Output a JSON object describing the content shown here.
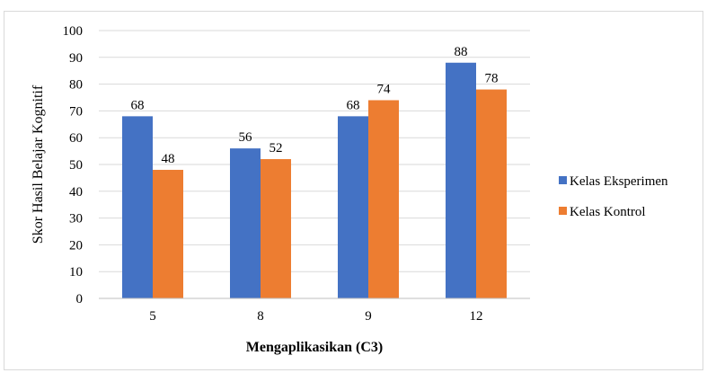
{
  "chart_data": {
    "type": "bar",
    "categories": [
      "5",
      "8",
      "9",
      "12"
    ],
    "series": [
      {
        "name": "Kelas Eksperimen",
        "values": [
          68,
          56,
          68,
          88
        ],
        "color": "#4472c4"
      },
      {
        "name": "Kelas Kontrol",
        "values": [
          48,
          52,
          74,
          78
        ],
        "color": "#ed7d31"
      }
    ],
    "xlabel": "Mengaplikasikan (C3)",
    "ylabel": "Skor Hasil Belajar Kognitif",
    "ylim": [
      0,
      100
    ],
    "yticks": [
      "0",
      "10",
      "20",
      "30",
      "40",
      "50",
      "60",
      "70",
      "80",
      "90",
      "100"
    ],
    "grid": true,
    "legend_position": "right",
    "gridline_color": "#d9d9d9"
  }
}
